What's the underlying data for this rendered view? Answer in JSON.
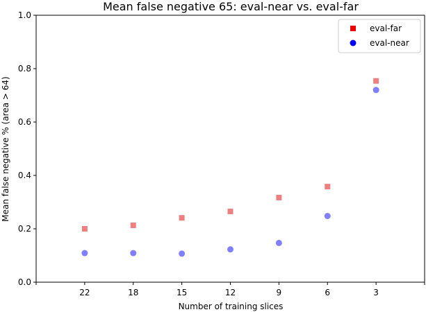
{
  "chart_data": {
    "type": "scatter",
    "title": "Mean false negative 65: eval-near vs. eval-far",
    "xlabel": "Number of training slices",
    "ylabel": "Mean false negative % (area > 64)",
    "categories": [
      "22",
      "18",
      "15",
      "12",
      "9",
      "6",
      "3"
    ],
    "ylim": [
      0,
      1.0
    ],
    "yticks": [
      "0.0",
      "0.2",
      "0.4",
      "0.6",
      "0.8",
      "1.0"
    ],
    "grid": false,
    "legend_position": "top-right",
    "series": [
      {
        "name": "eval-far",
        "marker": "square",
        "color": "#ee0000",
        "legend_color": "#ee0000",
        "point_color": "#f08080",
        "values": [
          0.2,
          0.213,
          0.241,
          0.265,
          0.317,
          0.358,
          0.754
        ]
      },
      {
        "name": "eval-near",
        "marker": "circle",
        "color": "#0000ff",
        "legend_color": "#0000ff",
        "point_color": "#8080ff",
        "values": [
          0.109,
          0.109,
          0.107,
          0.123,
          0.147,
          0.248,
          0.72
        ]
      }
    ]
  }
}
